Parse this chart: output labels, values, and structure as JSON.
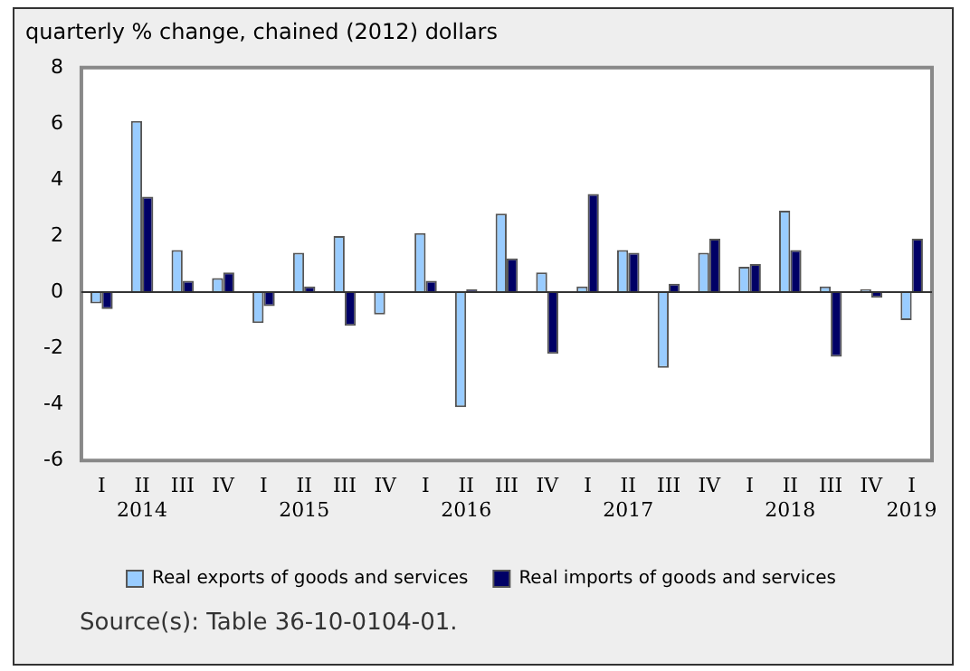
{
  "chart_data": {
    "type": "bar",
    "ylabel": "quarterly % change, chained (2012) dollars",
    "categories": [
      "I",
      "II\n2014",
      "III",
      "IV",
      "I",
      "II\n2015",
      "III",
      "IV",
      "I",
      "II\n2016",
      "III",
      "IV",
      "I",
      "II\n2017",
      "III",
      "IV",
      "I",
      "II\n2018",
      "III",
      "IV",
      "I\n2019"
    ],
    "series": [
      {
        "name": "Real exports of goods and services",
        "color": "#99ccff",
        "values": [
          -0.4,
          6.1,
          1.5,
          0.5,
          -1.1,
          1.4,
          2.0,
          -0.8,
          2.1,
          -4.1,
          2.8,
          0.7,
          0.2,
          1.5,
          -2.7,
          1.4,
          0.9,
          2.9,
          0.2,
          0.1,
          -1.0
        ]
      },
      {
        "name": "Real imports of goods and services",
        "color": "#000066",
        "values": [
          -0.6,
          3.4,
          0.4,
          0.7,
          -0.5,
          0.2,
          -1.2,
          0.0,
          0.4,
          0.1,
          1.2,
          -2.2,
          3.5,
          1.4,
          0.3,
          1.9,
          1.0,
          1.5,
          -2.3,
          -0.2,
          1.9
        ]
      }
    ],
    "ylim": [
      -6,
      8
    ],
    "yticks": [
      -6,
      -4,
      -2,
      0,
      2,
      4,
      6,
      8
    ],
    "legend": "bottom",
    "annotations": [
      "Source(s): Table 36-10-0104-01."
    ]
  }
}
